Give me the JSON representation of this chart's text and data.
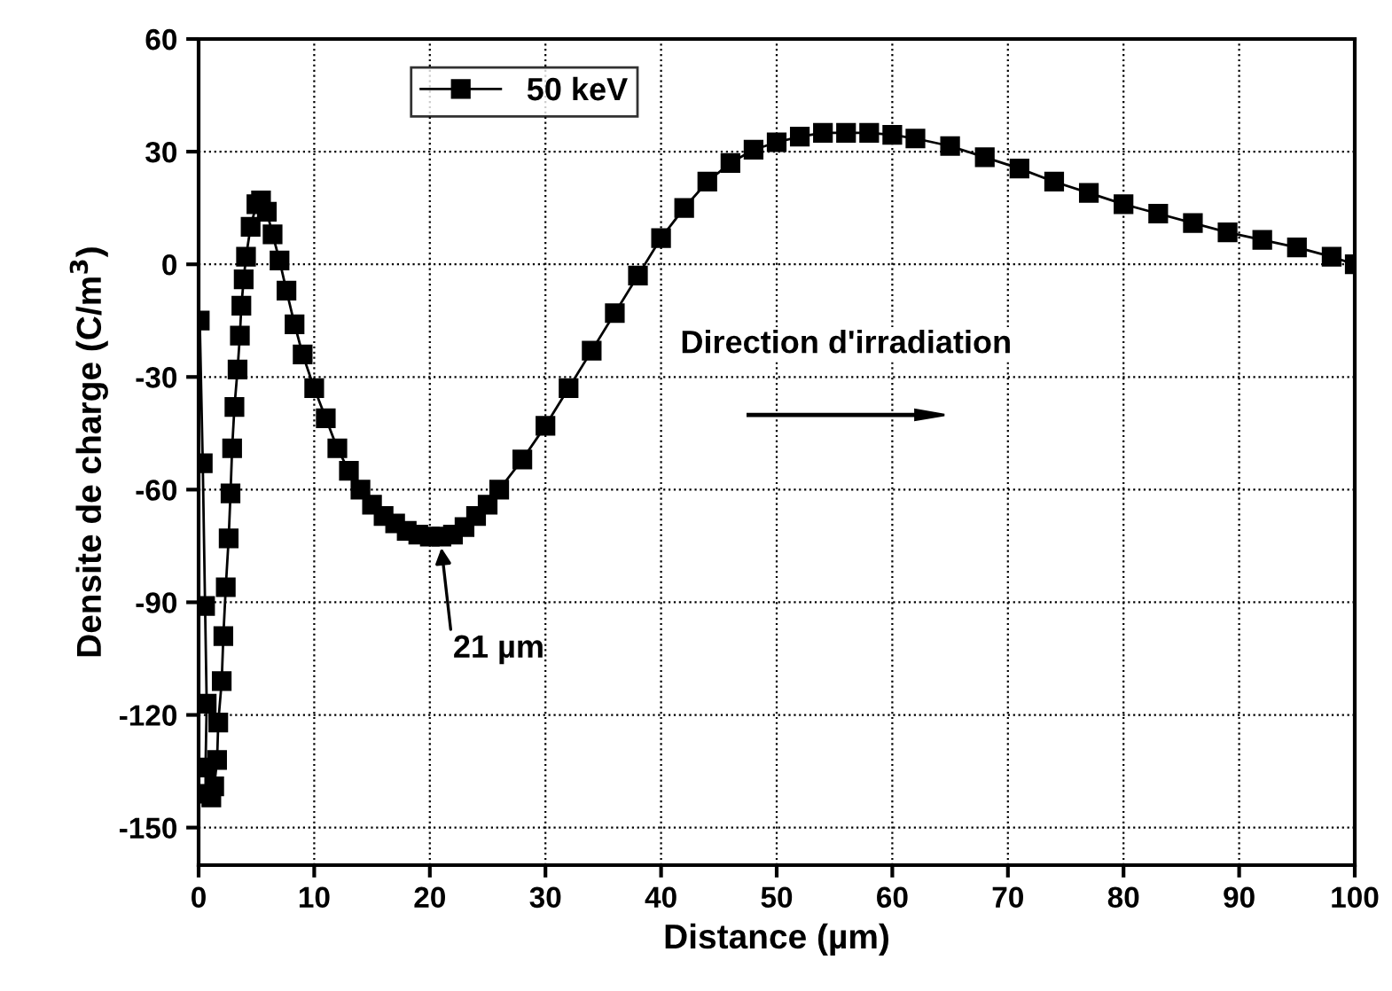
{
  "chart_data": {
    "type": "line",
    "xlabel": "Distance (µm)",
    "ylabel": "Densite de charge (C/m$^{3}$)",
    "xlim": [
      0,
      100
    ],
    "ylim": [
      -160,
      60
    ],
    "xticks": [
      0,
      10,
      20,
      30,
      40,
      50,
      60,
      70,
      80,
      90,
      100
    ],
    "yticks": [
      -150,
      -120,
      -90,
      -60,
      -30,
      0,
      30,
      60
    ],
    "grid": true,
    "legend": "top left",
    "marker": "square",
    "line_style": "solid",
    "series": [
      {
        "name": "50 keV",
        "color": "#000000",
        "x": [
          0.1,
          0.36,
          0.56,
          0.7,
          0.6,
          0.9,
          1.1,
          1.35,
          1.6,
          1.7,
          2.0,
          2.14,
          2.35,
          2.6,
          2.76,
          2.9,
          3.1,
          3.37,
          3.57,
          3.7,
          3.9,
          4.1,
          4.5,
          5.0,
          5.4,
          5.9,
          6.4,
          7.0,
          7.6,
          8.3,
          9.0,
          10,
          11,
          12,
          13,
          14,
          15,
          16,
          17,
          18,
          19,
          20,
          21,
          22,
          23,
          24,
          25,
          26,
          28,
          30,
          32,
          34,
          36,
          38,
          40,
          42,
          44,
          46,
          48,
          50,
          52,
          54,
          56,
          58,
          60,
          62,
          65,
          68,
          71,
          74,
          77,
          80,
          83,
          86,
          89,
          92,
          95,
          98,
          100
        ],
        "values": [
          -15,
          -53,
          -91,
          -117,
          -134,
          -141,
          -142,
          -139,
          -132,
          -122,
          -111,
          -99,
          -86,
          -73,
          -61,
          -49,
          -38,
          -28,
          -19,
          -11,
          -4,
          2,
          10,
          16,
          17,
          14,
          8,
          1,
          -7,
          -16,
          -24,
          -33,
          -41,
          -49,
          -55,
          -60,
          -64,
          -67,
          -69,
          -71,
          -72,
          -72.5,
          -72.5,
          -72,
          -70,
          -67,
          -64,
          -60,
          -52,
          -43,
          -33,
          -23,
          -13,
          -3,
          7,
          15,
          22,
          27,
          30.5,
          32.5,
          34,
          35,
          35,
          35,
          34.5,
          33.5,
          31.5,
          28.5,
          25.5,
          22,
          19,
          16,
          13.5,
          11,
          8.5,
          6.5,
          4.5,
          2,
          0
        ]
      }
    ],
    "annotations": [
      {
        "text": "21 µm",
        "x": 21,
        "y": -72.5
      },
      "Direction d'irradiation"
    ]
  }
}
